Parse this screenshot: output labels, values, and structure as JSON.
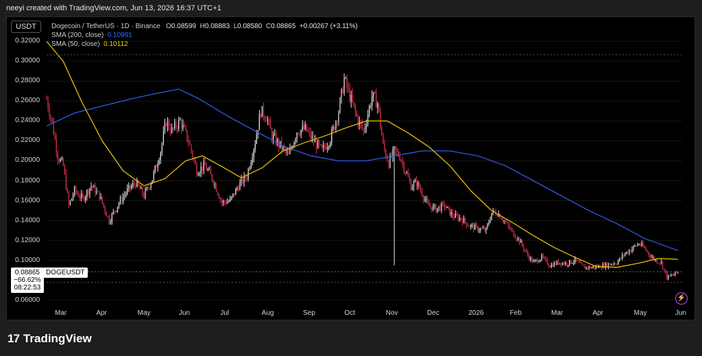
{
  "header": {
    "credit": "neeyi created with TradingView.com, Jun 13, 2026 16:37 UTC+1"
  },
  "symbol_box": "USDT",
  "legend": {
    "title": "Dogecoin / TetherUS · 1D · Binance",
    "o_label": "O",
    "o": "0.08599",
    "h_label": "H",
    "h": "0.08883",
    "l_label": "L",
    "l": "0.08580",
    "c_label": "C",
    "c": "0.08865",
    "change": "+0.00267 (+3.11%)",
    "sma200_label": "SMA (200, close)",
    "sma200_value": "0.10991",
    "sma50_label": "SMA (50, close)",
    "sma50_value": "0.10112"
  },
  "price_tag": {
    "price": "0.08865",
    "pct": "−66.62%",
    "countdown": "08:22:53",
    "symbol": "DOGEUSDT"
  },
  "brand": {
    "logo": "17",
    "name": "TradingView"
  },
  "colors": {
    "up": "#e8e8e8",
    "down": "#e0314f",
    "sma200": "#2f5bea",
    "sma50": "#e6c200",
    "bg": "#000000"
  },
  "chart_data": {
    "type": "candlestick",
    "x_labels": [
      "Mar",
      "Apr",
      "May",
      "Jun",
      "Jul",
      "Aug",
      "Sep",
      "Oct",
      "Nov",
      "Dec",
      "2026",
      "Feb",
      "Mar",
      "Apr",
      "May",
      "Jun"
    ],
    "y_ticks": [
      "0.32000",
      "0.30000",
      "0.28000",
      "0.26000",
      "0.24000",
      "0.22000",
      "0.20000",
      "0.18000",
      "0.16000",
      "0.14000",
      "0.12000",
      "0.10000",
      "0.06000"
    ],
    "ylim": [
      0.055,
      0.325
    ],
    "series": [
      {
        "name": "DOGEUSDT",
        "close_points": [
          [
            0,
            0.262
          ],
          [
            4,
            0.238
          ],
          [
            8,
            0.205
          ],
          [
            12,
            0.195
          ],
          [
            16,
            0.155
          ],
          [
            20,
            0.17
          ],
          [
            26,
            0.162
          ],
          [
            32,
            0.175
          ],
          [
            38,
            0.165
          ],
          [
            45,
            0.14
          ],
          [
            52,
            0.158
          ],
          [
            58,
            0.17
          ],
          [
            64,
            0.178
          ],
          [
            70,
            0.165
          ],
          [
            76,
            0.182
          ],
          [
            82,
            0.21
          ],
          [
            86,
            0.24
          ],
          [
            90,
            0.23
          ],
          [
            96,
            0.24
          ],
          [
            102,
            0.22
          ],
          [
            108,
            0.19
          ],
          [
            114,
            0.195
          ],
          [
            120,
            0.18
          ],
          [
            126,
            0.158
          ],
          [
            132,
            0.16
          ],
          [
            138,
            0.175
          ],
          [
            144,
            0.185
          ],
          [
            150,
            0.22
          ],
          [
            154,
            0.25
          ],
          [
            158,
            0.245
          ],
          [
            162,
            0.225
          ],
          [
            168,
            0.215
          ],
          [
            174,
            0.205
          ],
          [
            180,
            0.23
          ],
          [
            186,
            0.232
          ],
          [
            192,
            0.22
          ],
          [
            198,
            0.21
          ],
          [
            204,
            0.222
          ],
          [
            210,
            0.25
          ],
          [
            214,
            0.282
          ],
          [
            218,
            0.265
          ],
          [
            224,
            0.24
          ],
          [
            228,
            0.23
          ],
          [
            234,
            0.265
          ],
          [
            238,
            0.258
          ],
          [
            242,
            0.215
          ],
          [
            246,
            0.198
          ],
          [
            250,
            0.21
          ],
          [
            254,
            0.205
          ],
          [
            258,
            0.19
          ],
          [
            262,
            0.175
          ],
          [
            266,
            0.178
          ],
          [
            270,
            0.168
          ],
          [
            274,
            0.155
          ],
          [
            280,
            0.152
          ],
          [
            286,
            0.155
          ],
          [
            292,
            0.145
          ],
          [
            298,
            0.142
          ],
          [
            304,
            0.135
          ],
          [
            310,
            0.132
          ],
          [
            316,
            0.13
          ],
          [
            320,
            0.148
          ],
          [
            324,
            0.148
          ],
          [
            328,
            0.142
          ],
          [
            334,
            0.13
          ],
          [
            340,
            0.12
          ],
          [
            346,
            0.105
          ],
          [
            350,
            0.098
          ],
          [
            356,
            0.103
          ],
          [
            362,
            0.095
          ],
          [
            368,
            0.098
          ],
          [
            374,
            0.097
          ],
          [
            380,
            0.1
          ],
          [
            386,
            0.093
          ],
          [
            392,
            0.093
          ],
          [
            398,
            0.094
          ],
          [
            404,
            0.096
          ],
          [
            410,
            0.098
          ],
          [
            416,
            0.107
          ],
          [
            422,
            0.113
          ],
          [
            426,
            0.117
          ],
          [
            430,
            0.112
          ],
          [
            434,
            0.105
          ],
          [
            438,
            0.1
          ],
          [
            442,
            0.098
          ],
          [
            446,
            0.083
          ],
          [
            450,
            0.085
          ],
          [
            454,
            0.0887
          ]
        ],
        "low_spike": {
          "day": 250,
          "value": 0.095
        },
        "total_days": 457
      },
      {
        "name": "SMA (200, close)",
        "points": [
          [
            0,
            0.235
          ],
          [
            20,
            0.248
          ],
          [
            40,
            0.255
          ],
          [
            60,
            0.262
          ],
          [
            80,
            0.268
          ],
          [
            95,
            0.272
          ],
          [
            110,
            0.262
          ],
          [
            130,
            0.245
          ],
          [
            150,
            0.23
          ],
          [
            170,
            0.215
          ],
          [
            190,
            0.205
          ],
          [
            210,
            0.2
          ],
          [
            230,
            0.2
          ],
          [
            250,
            0.205
          ],
          [
            270,
            0.21
          ],
          [
            290,
            0.21
          ],
          [
            310,
            0.205
          ],
          [
            330,
            0.195
          ],
          [
            350,
            0.18
          ],
          [
            370,
            0.165
          ],
          [
            390,
            0.15
          ],
          [
            410,
            0.137
          ],
          [
            430,
            0.122
          ],
          [
            454,
            0.10991
          ]
        ]
      },
      {
        "name": "SMA (50, close)",
        "points": [
          [
            0,
            0.32
          ],
          [
            12,
            0.3
          ],
          [
            25,
            0.26
          ],
          [
            40,
            0.22
          ],
          [
            55,
            0.19
          ],
          [
            70,
            0.175
          ],
          [
            85,
            0.182
          ],
          [
            100,
            0.2
          ],
          [
            112,
            0.205
          ],
          [
            125,
            0.195
          ],
          [
            140,
            0.183
          ],
          [
            155,
            0.193
          ],
          [
            170,
            0.21
          ],
          [
            185,
            0.218
          ],
          [
            200,
            0.225
          ],
          [
            215,
            0.233
          ],
          [
            230,
            0.24
          ],
          [
            245,
            0.24
          ],
          [
            260,
            0.228
          ],
          [
            275,
            0.214
          ],
          [
            290,
            0.195
          ],
          [
            305,
            0.17
          ],
          [
            320,
            0.15
          ],
          [
            335,
            0.138
          ],
          [
            350,
            0.125
          ],
          [
            365,
            0.113
          ],
          [
            380,
            0.103
          ],
          [
            395,
            0.094
          ],
          [
            410,
            0.093
          ],
          [
            425,
            0.097
          ],
          [
            440,
            0.102
          ],
          [
            454,
            0.10112
          ]
        ]
      }
    ]
  }
}
